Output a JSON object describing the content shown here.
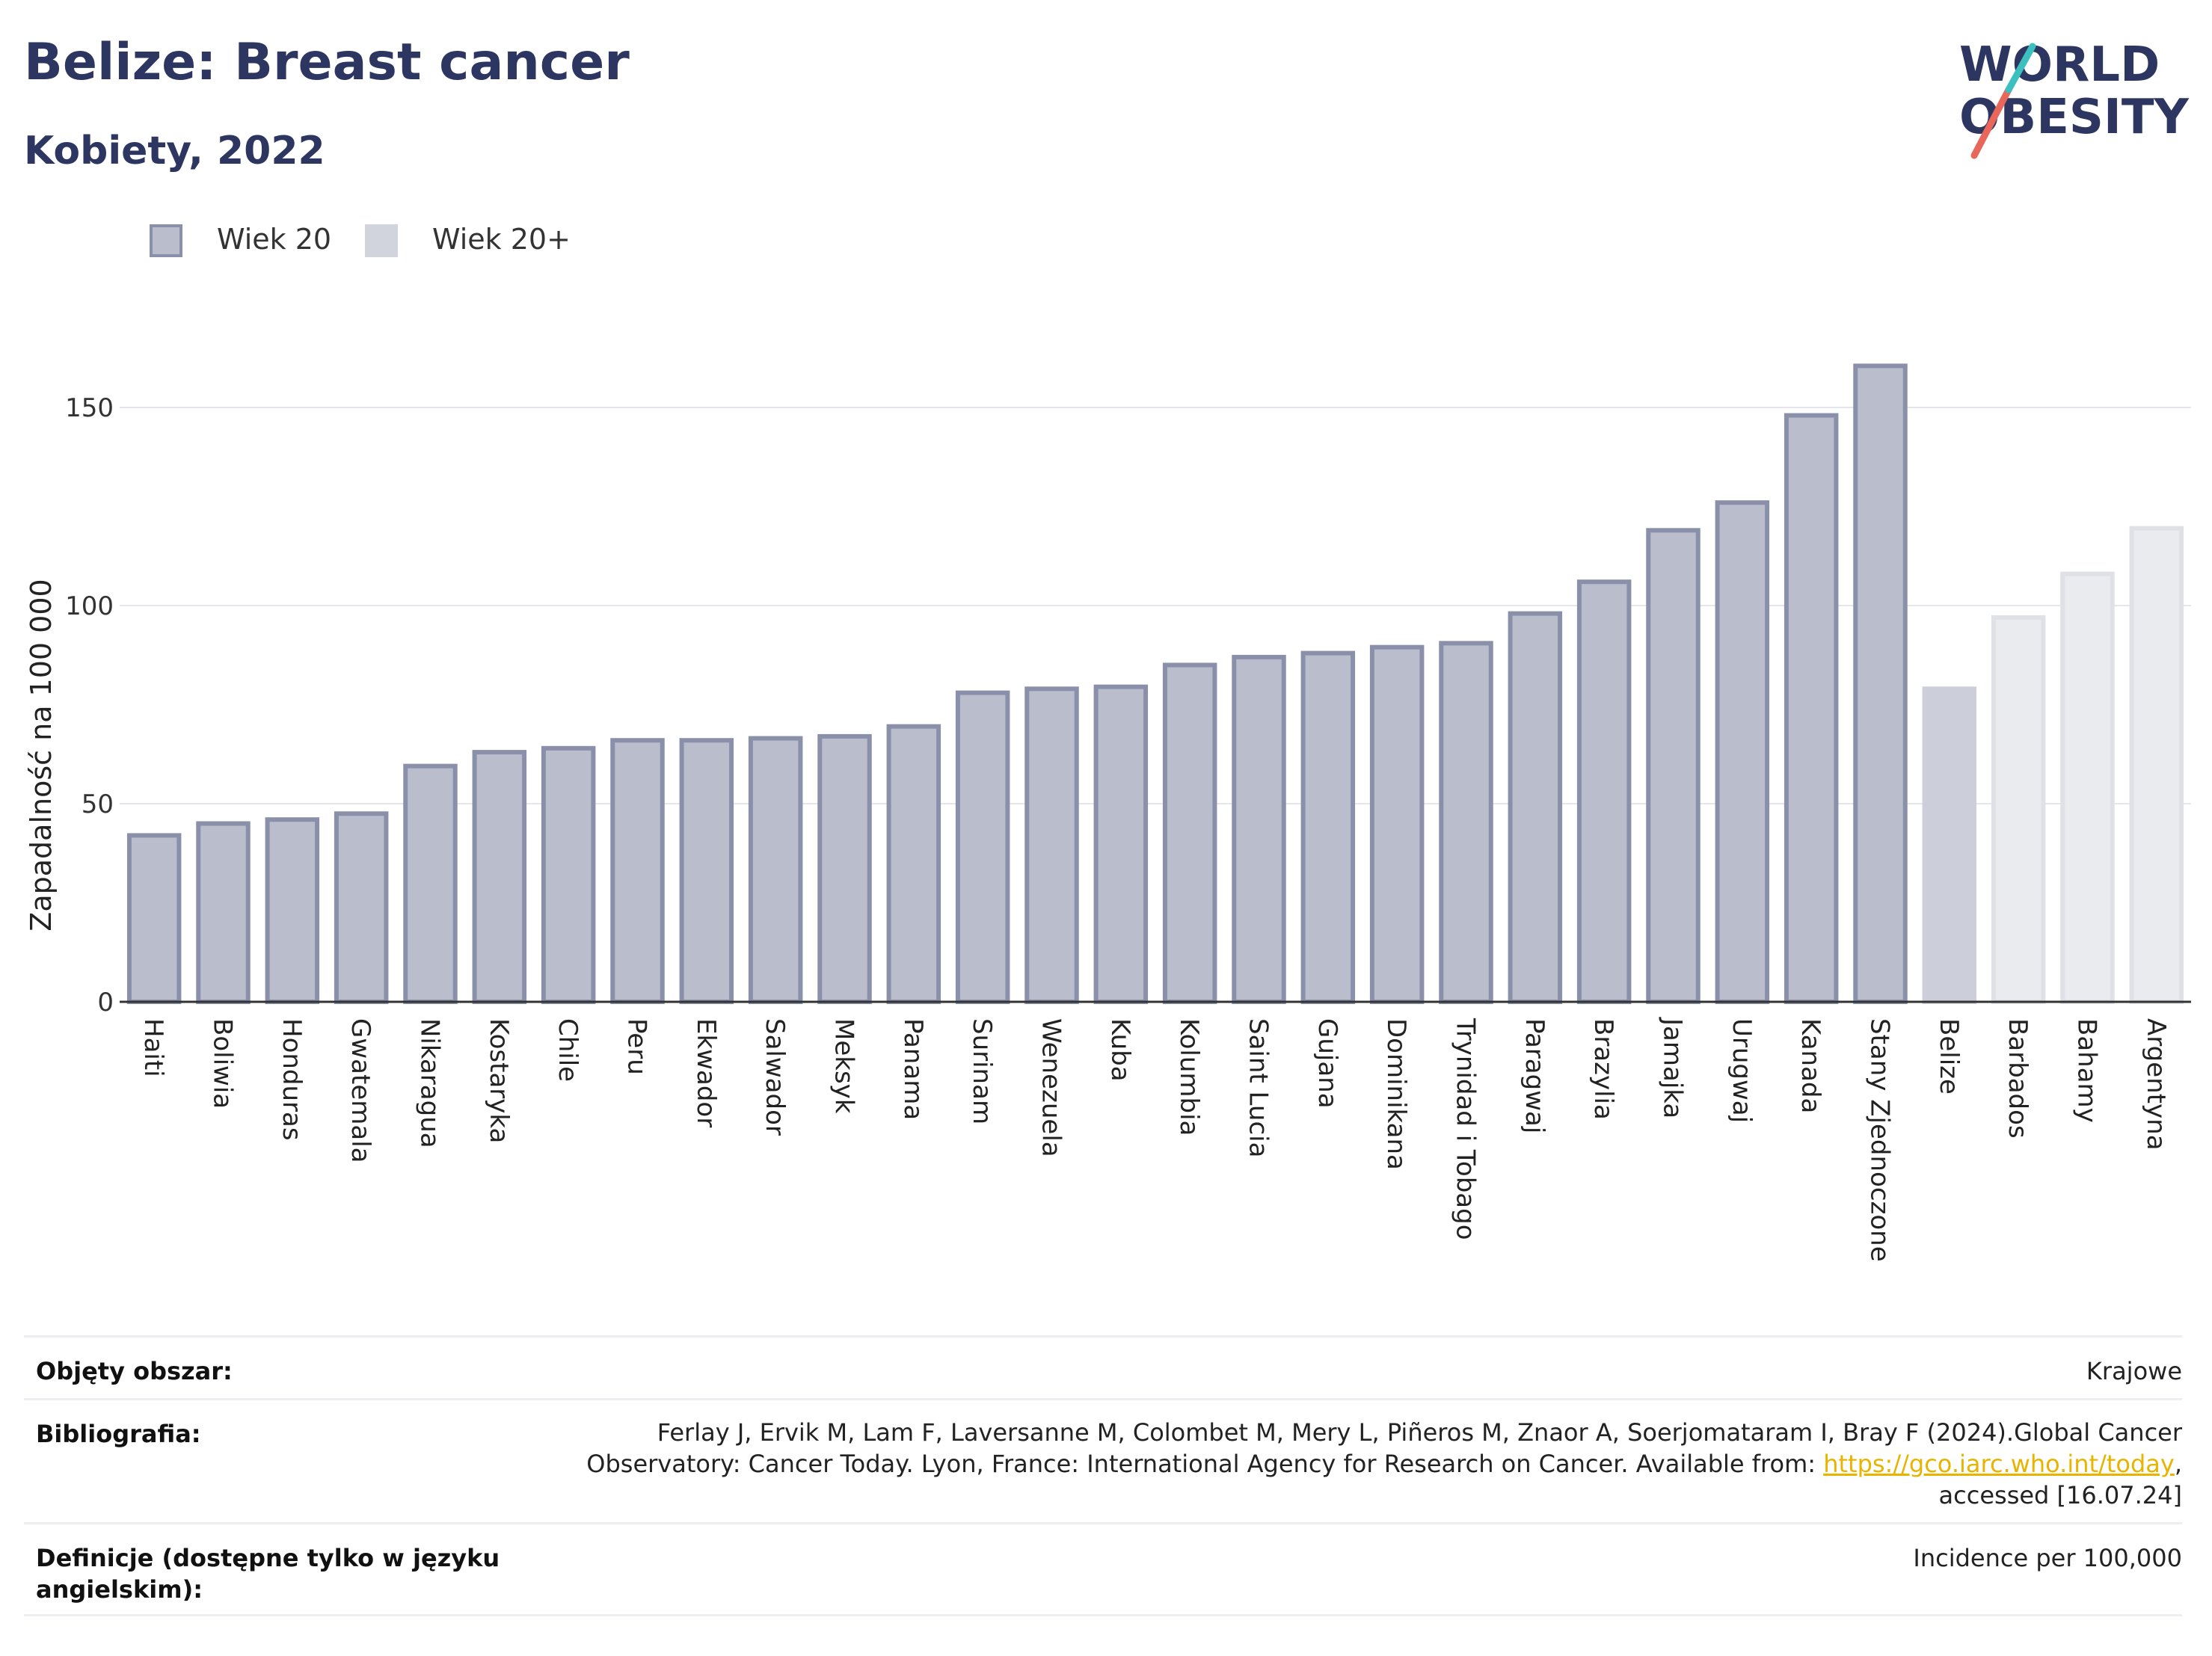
{
  "header": {
    "title": "Belize: Breast cancer",
    "subtitle": "Kobiety, 2022"
  },
  "logo": {
    "line1": "WORLD",
    "line2": "OBESITY",
    "colors": {
      "text": "#2d3561",
      "accent_red": "#e8675a",
      "accent_teal": "#3bbfbf"
    }
  },
  "legend": {
    "items": [
      {
        "label": "Wiek 20",
        "color": "#b9bdcc",
        "border": "#8a90a9"
      },
      {
        "label": "Wiek 20+",
        "color": "#d1d3dd",
        "border": "#d1d3dd"
      }
    ]
  },
  "chart_data": {
    "type": "bar",
    "ylabel": "Zapadalność na 100 000",
    "ylim": [
      0,
      165
    ],
    "yticks": [
      0,
      50,
      100,
      150
    ],
    "grid": true,
    "legend_position": "top-left",
    "categories": [
      "Haiti",
      "Boliwia",
      "Honduras",
      "Gwatemala",
      "Nikaragua",
      "Kostaryka",
      "Chile",
      "Peru",
      "Ekwador",
      "Salwador",
      "Meksyk",
      "Panama",
      "Surinam",
      "Wenezuela",
      "Kuba",
      "Kolumbia",
      "Saint Lucia",
      "Gujana",
      "Dominikana",
      "Trynidad i Tobago",
      "Paragwaj",
      "Brazylia",
      "Jamajka",
      "Urugwaj",
      "Kanada",
      "Stany Zjednoczone",
      "Belize",
      "Barbados",
      "Bahamy",
      "Argentyna"
    ],
    "values": [
      42,
      45,
      46,
      47.5,
      59.5,
      63,
      64,
      66,
      66,
      66.5,
      67,
      69.5,
      78,
      79,
      79.5,
      85,
      87,
      88,
      89.5,
      90.5,
      98,
      106,
      119,
      126,
      148,
      160.5,
      79,
      97,
      108,
      119.5
    ],
    "series_style": [
      "Wiek 20",
      "Wiek 20",
      "Wiek 20",
      "Wiek 20",
      "Wiek 20",
      "Wiek 20",
      "Wiek 20",
      "Wiek 20",
      "Wiek 20",
      "Wiek 20",
      "Wiek 20",
      "Wiek 20",
      "Wiek 20",
      "Wiek 20",
      "Wiek 20",
      "Wiek 20",
      "Wiek 20",
      "Wiek 20",
      "Wiek 20",
      "Wiek 20",
      "Wiek 20",
      "Wiek 20",
      "Wiek 20",
      "Wiek 20",
      "Wiek 20",
      "Wiek 20",
      "Belize",
      "Wiek 20+",
      "Wiek 20+",
      "Wiek 20+"
    ],
    "colors": {
      "Wiek 20": {
        "fill": "#b9bdcc",
        "stroke": "#8a90a9"
      },
      "Belize": {
        "fill": "#cccfd9",
        "stroke": "#cccfd9"
      },
      "Wiek 20+": {
        "fill": "#eaebef",
        "stroke": "#dfe1e7"
      }
    }
  },
  "info": {
    "rows": [
      {
        "key": "Objęty obszar:",
        "value": "Krajowe"
      },
      {
        "key": "Bibliografia:",
        "value_line1": "Ferlay J, Ervik M, Lam F, Laversanne M, Colombet M, Mery L, Piñeros M, Znaor A, Soerjomataram I, Bray F (2024).Global Cancer",
        "value_line2_pre": "Observatory: Cancer Today. Lyon, France: International Agency for Research on Cancer. Available from: ",
        "value_link": "https://gco.iarc.who.int/today",
        "value_line2_post": ",",
        "value_line3": "accessed [16.07.24]"
      },
      {
        "key_line1": "Definicje (dostępne tylko w języku",
        "key_line2": "angielskim):",
        "value": "Incidence per 100,000"
      }
    ]
  }
}
